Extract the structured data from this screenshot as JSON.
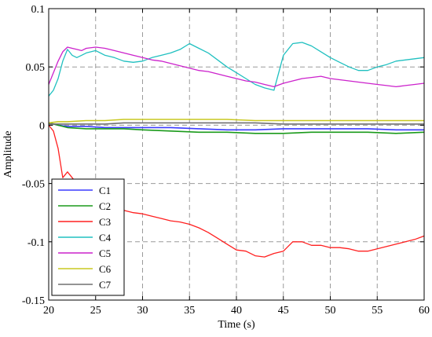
{
  "chart_data": {
    "type": "line",
    "title": "",
    "xlabel": "Time (s)",
    "ylabel": "Amplitude",
    "xlim": [
      20,
      60
    ],
    "ylim": [
      -0.15,
      0.1
    ],
    "xticks": [
      20,
      25,
      30,
      35,
      40,
      45,
      50,
      55,
      60
    ],
    "yticks": [
      -0.15,
      -0.1,
      -0.05,
      0,
      0.05,
      0.1
    ],
    "xtick_labels": [
      "20",
      "25",
      "30",
      "35",
      "40",
      "45",
      "50",
      "55",
      "60"
    ],
    "ytick_labels": [
      "-0.15",
      "-0.1",
      "-0.05",
      "0",
      "0.05",
      "0.1"
    ],
    "grid": true,
    "legend_position": "bottom-left",
    "series": [
      {
        "name": "C1",
        "color": "#3a3aff",
        "x": [
          20,
          21,
          22,
          24,
          26,
          28,
          30,
          33,
          36,
          39,
          42,
          45,
          48,
          51,
          54,
          57,
          60
        ],
        "y": [
          0.002,
          0.0,
          -0.001,
          -0.001,
          -0.002,
          -0.002,
          -0.002,
          -0.002,
          -0.003,
          -0.004,
          -0.004,
          -0.003,
          -0.003,
          -0.003,
          -0.003,
          -0.004,
          -0.004
        ]
      },
      {
        "name": "C2",
        "color": "#1a9a1a",
        "x": [
          20,
          21,
          22,
          24,
          26,
          28,
          30,
          33,
          36,
          39,
          42,
          45,
          48,
          51,
          54,
          57,
          60
        ],
        "y": [
          0.002,
          0.0,
          -0.002,
          -0.003,
          -0.003,
          -0.003,
          -0.004,
          -0.005,
          -0.006,
          -0.006,
          -0.007,
          -0.007,
          -0.006,
          -0.006,
          -0.006,
          -0.007,
          -0.006
        ]
      },
      {
        "name": "C3",
        "color": "#ff2020",
        "x": [
          20,
          20.5,
          21,
          21.5,
          22,
          22.5,
          23,
          23.5,
          24,
          25,
          26,
          27,
          28,
          29,
          30,
          31,
          32,
          33,
          34,
          35,
          36,
          37,
          38,
          39,
          40,
          41,
          42,
          43,
          44,
          45,
          46,
          47,
          48,
          49,
          50,
          51,
          52,
          53,
          54,
          55,
          56,
          57,
          58,
          59,
          60
        ],
        "y": [
          0.0,
          -0.005,
          -0.02,
          -0.045,
          -0.04,
          -0.045,
          -0.05,
          -0.06,
          -0.07,
          -0.075,
          -0.075,
          -0.074,
          -0.073,
          -0.075,
          -0.076,
          -0.078,
          -0.08,
          -0.082,
          -0.083,
          -0.085,
          -0.088,
          -0.092,
          -0.097,
          -0.102,
          -0.107,
          -0.108,
          -0.112,
          -0.113,
          -0.11,
          -0.108,
          -0.1,
          -0.1,
          -0.103,
          -0.103,
          -0.105,
          -0.105,
          -0.106,
          -0.108,
          -0.108,
          -0.106,
          -0.104,
          -0.102,
          -0.1,
          -0.098,
          -0.095
        ]
      },
      {
        "name": "C4",
        "color": "#20c0c0",
        "x": [
          20,
          20.5,
          21,
          21.5,
          22,
          22.5,
          23,
          23.5,
          24,
          25,
          26,
          27,
          28,
          29,
          30,
          31,
          32,
          33,
          34,
          35,
          36,
          37,
          38,
          39,
          40,
          41,
          42,
          43,
          44,
          45,
          46,
          47,
          48,
          49,
          50,
          51,
          52,
          53,
          54,
          55,
          56,
          57,
          58,
          59,
          60
        ],
        "y": [
          0.025,
          0.03,
          0.04,
          0.055,
          0.065,
          0.06,
          0.058,
          0.06,
          0.062,
          0.064,
          0.06,
          0.058,
          0.055,
          0.054,
          0.055,
          0.058,
          0.06,
          0.062,
          0.065,
          0.07,
          0.066,
          0.062,
          0.056,
          0.05,
          0.045,
          0.04,
          0.035,
          0.032,
          0.03,
          0.06,
          0.07,
          0.071,
          0.068,
          0.063,
          0.058,
          0.054,
          0.05,
          0.047,
          0.047,
          0.05,
          0.052,
          0.055,
          0.056,
          0.057,
          0.058
        ]
      },
      {
        "name": "C5",
        "color": "#cc22cc",
        "x": [
          20,
          20.5,
          21,
          21.5,
          22,
          22.5,
          23,
          23.5,
          24,
          25,
          26,
          27,
          28,
          29,
          30,
          31,
          32,
          33,
          34,
          35,
          36,
          37,
          38,
          39,
          40,
          41,
          42,
          43,
          44,
          45,
          46,
          47,
          48,
          49,
          50,
          51,
          52,
          53,
          54,
          55,
          56,
          57,
          58,
          59,
          60
        ],
        "y": [
          0.035,
          0.045,
          0.055,
          0.063,
          0.067,
          0.066,
          0.065,
          0.064,
          0.066,
          0.067,
          0.066,
          0.064,
          0.062,
          0.06,
          0.058,
          0.056,
          0.055,
          0.053,
          0.051,
          0.049,
          0.047,
          0.046,
          0.044,
          0.042,
          0.04,
          0.038,
          0.037,
          0.035,
          0.033,
          0.036,
          0.038,
          0.04,
          0.041,
          0.042,
          0.04,
          0.039,
          0.038,
          0.037,
          0.036,
          0.035,
          0.034,
          0.033,
          0.034,
          0.035,
          0.036
        ]
      },
      {
        "name": "C6",
        "color": "#c8c820",
        "x": [
          20,
          21,
          22,
          24,
          26,
          28,
          30,
          33,
          36,
          39,
          42,
          45,
          48,
          51,
          54,
          57,
          60
        ],
        "y": [
          0.002,
          0.003,
          0.003,
          0.004,
          0.004,
          0.005,
          0.005,
          0.005,
          0.005,
          0.005,
          0.004,
          0.004,
          0.004,
          0.004,
          0.004,
          0.004,
          0.004
        ]
      },
      {
        "name": "C7",
        "color": "#707070",
        "x": [
          20,
          21,
          22,
          24,
          26,
          28,
          30,
          33,
          36,
          39,
          42,
          45,
          48,
          51,
          54,
          57,
          60
        ],
        "y": [
          0.001,
          0.001,
          0.001,
          0.001,
          0.001,
          0.002,
          0.002,
          0.002,
          0.002,
          0.002,
          0.002,
          0.001,
          0.001,
          0.001,
          0.001,
          0.001,
          0.001
        ]
      }
    ]
  }
}
